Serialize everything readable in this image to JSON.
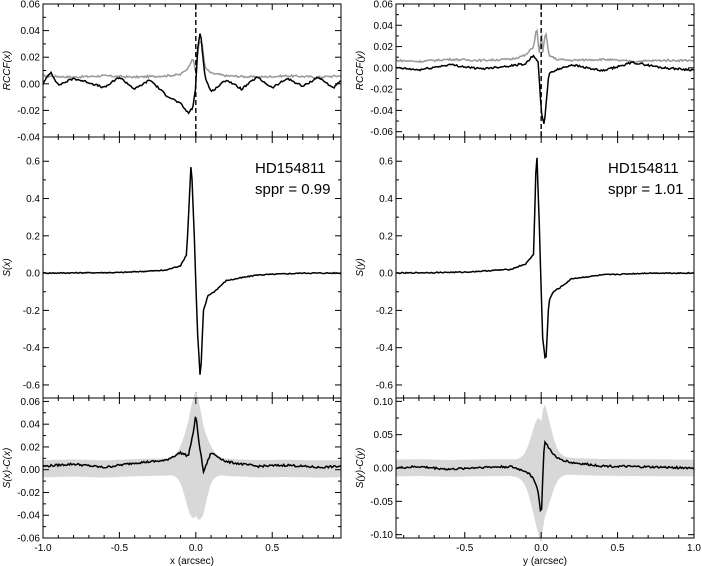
{
  "chart_data": [
    {
      "id": "left-top",
      "type": "line",
      "ylabel": "RCCF(x)",
      "xlim": [
        -1.0,
        0.95
      ],
      "ylim": [
        -0.04,
        0.06
      ],
      "yticks": [
        -0.04,
        -0.02,
        0.0,
        0.02,
        0.04,
        0.06
      ],
      "ytick_labels": [
        "-0.04",
        "-0.02",
        "0.00",
        "0.02",
        "0.04",
        "0.06"
      ],
      "vline_x": 0.0,
      "series": [
        {
          "color": "#999999",
          "x": [
            -1.0,
            -0.8,
            -0.6,
            -0.4,
            -0.2,
            -0.1,
            -0.05,
            -0.02,
            0.0,
            0.02,
            0.04,
            0.06,
            0.1,
            0.2,
            0.4,
            0.6,
            0.8,
            0.95
          ],
          "y": [
            0.006,
            0.005,
            0.006,
            0.005,
            0.006,
            0.007,
            0.012,
            0.02,
            0.008,
            0.03,
            0.032,
            0.012,
            0.008,
            0.006,
            0.005,
            0.006,
            0.005,
            0.006
          ]
        },
        {
          "color": "#000000",
          "x": [
            -1.0,
            -0.95,
            -0.9,
            -0.8,
            -0.7,
            -0.6,
            -0.5,
            -0.4,
            -0.3,
            -0.2,
            -0.1,
            -0.05,
            -0.02,
            0.0,
            0.01,
            0.03,
            0.06,
            0.1,
            0.2,
            0.3,
            0.4,
            0.5,
            0.6,
            0.7,
            0.8,
            0.9,
            0.95
          ],
          "y": [
            0.0,
            0.009,
            -0.001,
            0.004,
            0.001,
            -0.003,
            0.005,
            -0.004,
            0.003,
            -0.008,
            -0.015,
            -0.022,
            -0.018,
            -0.003,
            0.025,
            0.04,
            0.005,
            -0.006,
            0.003,
            -0.004,
            0.005,
            -0.003,
            0.004,
            -0.002,
            0.005,
            -0.003,
            0.002
          ]
        }
      ]
    },
    {
      "id": "left-mid",
      "type": "line",
      "ylabel": "S(x)",
      "xlim": [
        -1.0,
        0.95
      ],
      "ylim": [
        -0.67,
        0.73
      ],
      "yticks": [
        -0.6,
        -0.4,
        -0.2,
        0.0,
        0.2,
        0.4,
        0.6
      ],
      "ytick_labels": [
        "-0.6",
        "-0.4",
        "-0.2",
        "0.0",
        "0.2",
        "0.4",
        "0.6"
      ],
      "annotation": [
        "HD154811",
        "sppr = 0.99"
      ],
      "series": [
        {
          "color": "#000000",
          "x": [
            -1.0,
            -0.5,
            -0.2,
            -0.1,
            -0.06,
            -0.03,
            -0.01,
            0.0,
            0.01,
            0.03,
            0.05,
            0.08,
            0.12,
            0.2,
            0.4,
            0.7,
            0.95
          ],
          "y": [
            0.0,
            0.003,
            0.015,
            0.04,
            0.1,
            0.61,
            0.2,
            -0.05,
            -0.3,
            -0.58,
            -0.2,
            -0.12,
            -0.1,
            -0.04,
            -0.01,
            0.0,
            0.0
          ]
        }
      ]
    },
    {
      "id": "left-bot",
      "type": "line",
      "ylabel": "S(x)-C(x)",
      "xlabel": "x (arcsec)",
      "xlim": [
        -1.0,
        0.95
      ],
      "ylim": [
        -0.06,
        0.063
      ],
      "yticks": [
        -0.06,
        -0.04,
        -0.02,
        0.0,
        0.02,
        0.04,
        0.06
      ],
      "ytick_labels": [
        "-0.06",
        "-0.04",
        "-0.02",
        "0.00",
        "0.02",
        "0.04",
        "0.06"
      ],
      "xticks": [
        -1.0,
        -0.5,
        0.0,
        0.5
      ],
      "xtick_labels": [
        "-1.0",
        "-0.5",
        "0.0",
        "0.5"
      ],
      "band_color": "#d8d8d8",
      "series": [
        {
          "color": "#000000",
          "x": [
            -1.0,
            -0.8,
            -0.6,
            -0.4,
            -0.2,
            -0.1,
            -0.05,
            -0.02,
            0.0,
            0.02,
            0.05,
            0.1,
            0.2,
            0.4,
            0.6,
            0.8,
            0.95
          ],
          "y": [
            0.003,
            0.005,
            0.002,
            0.006,
            0.008,
            0.015,
            0.012,
            0.03,
            0.048,
            0.025,
            -0.002,
            0.015,
            0.007,
            0.003,
            0.004,
            0.002,
            0.003
          ]
        }
      ]
    },
    {
      "id": "right-top",
      "type": "line",
      "ylabel": "RCCF(y)",
      "xlim": [
        -0.95,
        1.0
      ],
      "ylim": [
        -0.065,
        0.06
      ],
      "yticks": [
        -0.06,
        -0.04,
        -0.02,
        0.0,
        0.02,
        0.04,
        0.06
      ],
      "ytick_labels": [
        "-0.06",
        "-0.04",
        "-0.02",
        "0.00",
        "0.02",
        "0.04",
        "0.06"
      ],
      "vline_x": 0.0,
      "series": [
        {
          "color": "#999999",
          "x": [
            -0.95,
            -0.8,
            -0.6,
            -0.4,
            -0.2,
            -0.1,
            -0.05,
            -0.03,
            -0.01,
            0.0,
            0.01,
            0.03,
            0.05,
            0.1,
            0.2,
            0.4,
            0.6,
            0.8,
            1.0
          ],
          "y": [
            0.007,
            0.006,
            0.008,
            0.007,
            0.008,
            0.012,
            0.02,
            0.038,
            0.01,
            0.036,
            0.015,
            0.034,
            0.012,
            0.008,
            0.007,
            0.008,
            0.006,
            0.007,
            0.007
          ]
        },
        {
          "color": "#000000",
          "x": [
            -0.95,
            -0.8,
            -0.6,
            -0.4,
            -0.2,
            -0.1,
            -0.05,
            -0.02,
            0.0,
            0.02,
            0.05,
            0.1,
            0.2,
            0.4,
            0.6,
            0.8,
            1.0
          ],
          "y": [
            0.0,
            -0.002,
            0.003,
            -0.001,
            0.002,
            0.004,
            0.012,
            0.005,
            -0.04,
            -0.055,
            -0.005,
            -0.002,
            0.003,
            -0.003,
            0.005,
            0.0,
            -0.002
          ]
        }
      ]
    },
    {
      "id": "right-mid",
      "type": "line",
      "ylabel": "S(y)",
      "xlim": [
        -0.95,
        1.0
      ],
      "ylim": [
        -0.67,
        0.73
      ],
      "yticks": [
        -0.6,
        -0.4,
        -0.2,
        0.0,
        0.2,
        0.4,
        0.6
      ],
      "ytick_labels": [
        "-0.6",
        "-0.4",
        "-0.2",
        "0.0",
        "0.2",
        "0.4",
        "0.6"
      ],
      "annotation": [
        "HD154811",
        "sppr = 1.01"
      ],
      "series": [
        {
          "color": "#000000",
          "x": [
            -0.95,
            -0.5,
            -0.2,
            -0.1,
            -0.05,
            -0.03,
            -0.01,
            0.0,
            0.01,
            0.03,
            0.05,
            0.08,
            0.12,
            0.2,
            0.4,
            0.7,
            1.0
          ],
          "y": [
            0.0,
            0.005,
            0.02,
            0.05,
            0.1,
            0.68,
            0.2,
            -0.1,
            -0.35,
            -0.49,
            -0.15,
            -0.1,
            -0.08,
            -0.03,
            -0.01,
            0.0,
            0.0
          ]
        }
      ]
    },
    {
      "id": "right-bot",
      "type": "line",
      "ylabel": "S(y)-C(y)",
      "xlabel": "y (arcsec)",
      "xlim": [
        -0.95,
        1.0
      ],
      "ylim": [
        -0.105,
        0.105
      ],
      "yticks": [
        -0.1,
        -0.05,
        0.0,
        0.05,
        0.1
      ],
      "ytick_labels": [
        "-0.10",
        "-0.05",
        "0.00",
        "0.05",
        "0.10"
      ],
      "xticks": [
        -0.5,
        0.0,
        0.5,
        1.0
      ],
      "xtick_labels": [
        "-0.5",
        "0.0",
        "0.5",
        "1.0"
      ],
      "band_color": "#d8d8d8",
      "series": [
        {
          "color": "#000000",
          "x": [
            -0.95,
            -0.8,
            -0.6,
            -0.4,
            -0.2,
            -0.1,
            -0.05,
            -0.02,
            0.0,
            0.02,
            0.05,
            0.1,
            0.2,
            0.4,
            0.6,
            0.8,
            1.0
          ],
          "y": [
            0.0,
            0.002,
            -0.002,
            0.001,
            0.002,
            -0.005,
            -0.015,
            -0.035,
            -0.075,
            0.04,
            0.03,
            0.015,
            0.008,
            0.003,
            0.002,
            0.001,
            0.0
          ]
        }
      ]
    }
  ]
}
